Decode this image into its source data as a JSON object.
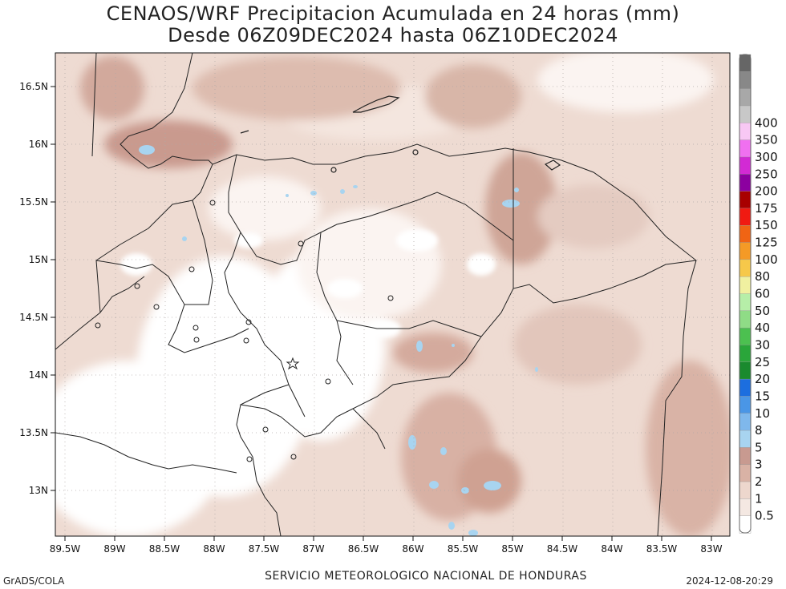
{
  "title": {
    "line1": "CENAOS/WRF Precipitacion Acumulada en 24 horas (mm)",
    "line2": "Desde 06Z09DEC2024 hasta 06Z10DEC2024"
  },
  "axes": {
    "lon_ticks": [
      "89.5W",
      "89W",
      "88.5W",
      "88W",
      "87.5W",
      "87W",
      "86.5W",
      "86W",
      "85.5W",
      "85W",
      "84.5W",
      "84W",
      "83.5W",
      "83W"
    ],
    "lat_ticks": [
      "16.5N",
      "16N",
      "15.5N",
      "15N",
      "14.5N",
      "14N",
      "13.5N",
      "13N"
    ]
  },
  "legend": {
    "levels": [
      "0.5",
      "1",
      "2",
      "3",
      "5",
      "8",
      "10",
      "15",
      "20",
      "25",
      "30",
      "40",
      "50",
      "60",
      "80",
      "100",
      "125",
      "150",
      "175",
      "200",
      "250",
      "300",
      "350",
      "400"
    ],
    "colors": [
      "#ffffff",
      "#f4e8e2",
      "#edd7cd",
      "#d9b2a5",
      "#c89a90",
      "#a8d4f0",
      "#7fb8ec",
      "#4a96e6",
      "#1c6edf",
      "#1a8a2e",
      "#2aa63a",
      "#4cc050",
      "#8fdc86",
      "#b6eea8",
      "#f0f0a0",
      "#f6c84a",
      "#f49a26",
      "#f06414",
      "#f01a12",
      "#a80000",
      "#8c00a0",
      "#d22ad4",
      "#f070f0",
      "#f8c8f4",
      "#c8c8c8",
      "#a8a8a8",
      "#888888",
      "#666666"
    ]
  },
  "markers": {
    "capital_star": "star-marker"
  },
  "footer": {
    "credit": "GrADS/COLA",
    "agency": "SERVICIO METEOROLOGICO NACIONAL DE HONDURAS",
    "timestamp": "2024-12-08-20:29"
  }
}
